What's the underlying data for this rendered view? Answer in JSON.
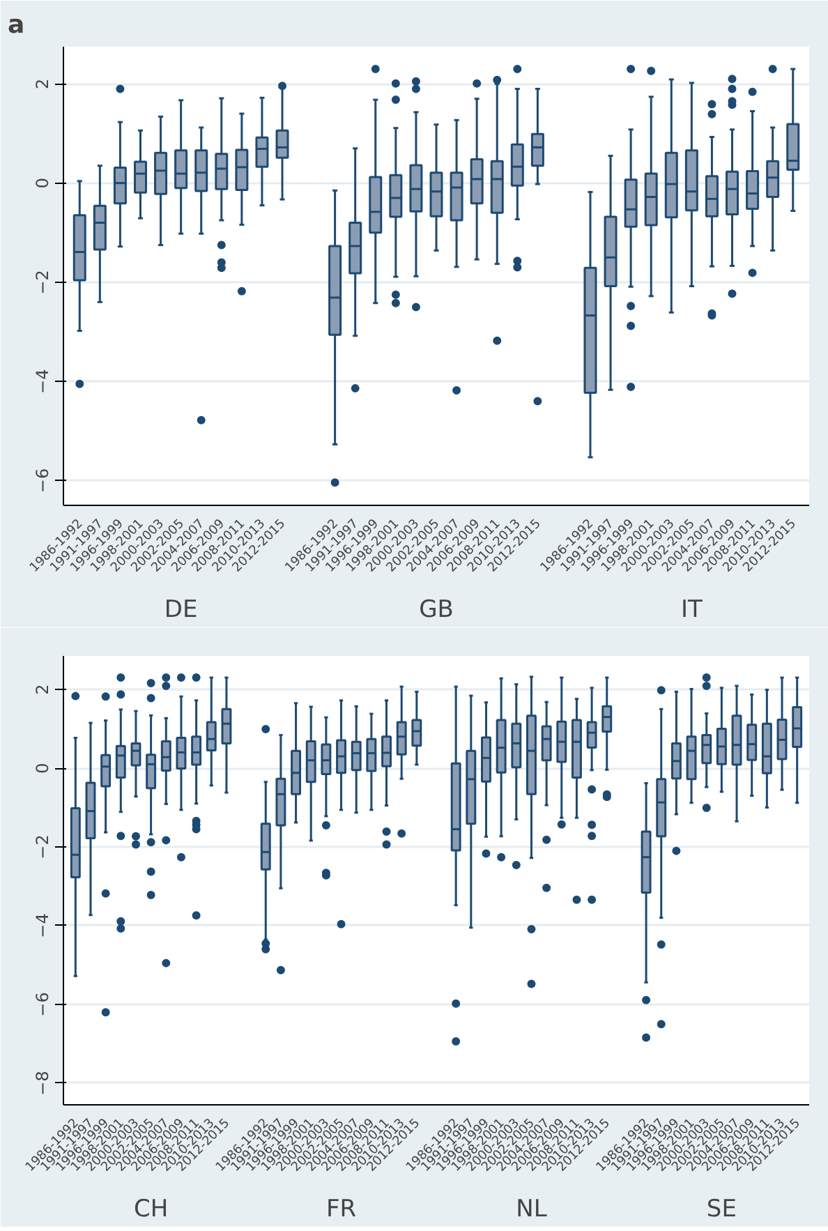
{
  "chart_data": [
    {
      "type": "box",
      "title": "a",
      "color": "#8c9db3",
      "categories": [
        "1986-1992",
        "1991-1997",
        "1996-1999",
        "1998-2001",
        "2000-2003",
        "2002-2005",
        "2004-2007",
        "2006-2009",
        "2008-2011",
        "2010-2013",
        "2012-2015",
        "1986-1992",
        "1991-1997",
        "1996-1999",
        "1998-2001",
        "2000-2003",
        "2002-2005",
        "2004-2007",
        "2006-2009",
        "2008-2011",
        "2010-2013",
        "2012-2015",
        "1986-1992",
        "1991-1997",
        "1996-1999",
        "1998-2001",
        "2000-2003",
        "2002-2005",
        "2004-2007",
        "2006-2009",
        "2008-2011",
        "2010-2013",
        "2012-2015"
      ],
      "annotations": [
        "DE",
        "GB",
        "IT"
      ],
      "ylim": [
        -6.5,
        2.75
      ],
      "yticks": [
        -6,
        -4,
        -2,
        0,
        2
      ],
      "grid": "y",
      "marker": "circle",
      "boxes": [
        {
          "low": -2.98,
          "q1": -1.96,
          "median": -1.39,
          "q3": -0.65,
          "high": 0.04,
          "outliers": [
            -4.05
          ]
        },
        {
          "low": -2.4,
          "q1": -1.34,
          "median": -0.8,
          "q3": -0.46,
          "high": 0.35
        },
        {
          "low": -1.28,
          "q1": -0.41,
          "median": 0.0,
          "q3": 0.31,
          "high": 1.23,
          "outliers": [
            1.9
          ]
        },
        {
          "low": -0.71,
          "q1": -0.19,
          "median": 0.19,
          "q3": 0.43,
          "high": 1.06
        },
        {
          "low": -1.25,
          "q1": -0.22,
          "median": 0.25,
          "q3": 0.61,
          "high": 1.34
        },
        {
          "low": -1.02,
          "q1": -0.1,
          "median": 0.19,
          "q3": 0.66,
          "high": 1.67
        },
        {
          "low": -1.02,
          "q1": -0.16,
          "median": 0.21,
          "q3": 0.66,
          "high": 1.12,
          "outliers": [
            -4.78
          ]
        },
        {
          "low": -0.75,
          "q1": -0.12,
          "median": 0.29,
          "q3": 0.59,
          "high": 1.71,
          "outliers": [
            -1.25,
            -1.6,
            -1.71
          ]
        },
        {
          "low": -0.84,
          "q1": -0.14,
          "median": 0.32,
          "q3": 0.67,
          "high": 1.4,
          "outliers": [
            -2.18
          ]
        },
        {
          "low": -0.45,
          "q1": 0.33,
          "median": 0.69,
          "q3": 0.92,
          "high": 1.72
        },
        {
          "low": -0.33,
          "q1": 0.51,
          "median": 0.72,
          "q3": 1.06,
          "high": 1.93,
          "outliers": [
            1.96
          ]
        },
        {
          "low": -5.27,
          "q1": -3.06,
          "median": -2.31,
          "q3": -1.27,
          "high": -0.15,
          "outliers": [
            -6.04
          ]
        },
        {
          "low": -3.08,
          "q1": -1.82,
          "median": -1.27,
          "q3": -0.8,
          "high": 0.7,
          "outliers": [
            -4.14
          ]
        },
        {
          "low": -2.42,
          "q1": -1.0,
          "median": -0.58,
          "q3": 0.12,
          "high": 1.68,
          "outliers": [
            2.3
          ]
        },
        {
          "low": -1.89,
          "q1": -0.68,
          "median": -0.3,
          "q3": 0.16,
          "high": 1.11,
          "outliers": [
            2.01,
            1.68,
            -2.25,
            -2.42
          ]
        },
        {
          "low": -1.88,
          "q1": -0.57,
          "median": -0.12,
          "q3": 0.36,
          "high": 1.43,
          "outliers": [
            2.05,
            1.9,
            -2.5
          ]
        },
        {
          "low": -1.36,
          "q1": -0.67,
          "median": -0.17,
          "q3": 0.21,
          "high": 1.18
        },
        {
          "low": -1.69,
          "q1": -0.75,
          "median": -0.09,
          "q3": 0.21,
          "high": 1.27,
          "outliers": [
            -4.18
          ]
        },
        {
          "low": -1.54,
          "q1": -0.41,
          "median": 0.08,
          "q3": 0.48,
          "high": 1.7,
          "outliers": [
            2.01
          ]
        },
        {
          "low": -1.63,
          "q1": -0.6,
          "median": 0.08,
          "q3": 0.44,
          "high": 2.0,
          "outliers": [
            2.08,
            -3.18
          ]
        },
        {
          "low": -0.73,
          "q1": -0.05,
          "median": 0.33,
          "q3": 0.78,
          "high": 1.9,
          "outliers": [
            2.3,
            -1.57,
            -1.7
          ]
        },
        {
          "low": -0.02,
          "q1": 0.35,
          "median": 0.72,
          "q3": 0.99,
          "high": 1.9,
          "outliers": [
            -4.4
          ]
        },
        {
          "low": -5.53,
          "q1": -4.23,
          "median": -2.67,
          "q3": -1.71,
          "high": -0.18
        },
        {
          "low": -4.17,
          "q1": -2.08,
          "median": -1.5,
          "q3": -0.68,
          "high": 0.55
        },
        {
          "low": -2.09,
          "q1": -0.88,
          "median": -0.53,
          "q3": 0.07,
          "high": 1.08,
          "outliers": [
            2.3,
            -2.48,
            -2.88,
            -4.11
          ]
        },
        {
          "low": -2.28,
          "q1": -0.85,
          "median": -0.28,
          "q3": 0.19,
          "high": 1.74,
          "outliers": [
            2.26
          ]
        },
        {
          "low": -2.61,
          "q1": -0.69,
          "median": -0.02,
          "q3": 0.61,
          "high": 2.09
        },
        {
          "low": -2.08,
          "q1": -0.55,
          "median": -0.17,
          "q3": 0.66,
          "high": 2.02
        },
        {
          "low": -1.68,
          "q1": -0.67,
          "median": -0.32,
          "q3": 0.14,
          "high": 0.93,
          "outliers": [
            1.59,
            1.39,
            -2.63,
            -2.67
          ]
        },
        {
          "low": -1.67,
          "q1": -0.63,
          "median": -0.12,
          "q3": 0.23,
          "high": 1.08,
          "outliers": [
            2.1,
            1.9,
            1.65,
            1.58,
            -2.23
          ]
        },
        {
          "low": -1.27,
          "q1": -0.52,
          "median": -0.21,
          "q3": 0.24,
          "high": 1.45,
          "outliers": [
            1.84,
            -1.81
          ]
        },
        {
          "low": -1.36,
          "q1": -0.28,
          "median": 0.11,
          "q3": 0.44,
          "high": 1.12,
          "outliers": [
            2.3
          ]
        },
        {
          "low": -0.56,
          "q1": 0.27,
          "median": 0.45,
          "q3": 1.19,
          "high": 2.3
        }
      ]
    },
    {
      "type": "box",
      "color": "#8c9db3",
      "categories": [
        "1986-1992",
        "1991-1997",
        "1996-1999",
        "1998-2001",
        "2000-2003",
        "2002-2005",
        "2004-2007",
        "2006-2009",
        "2008-2011",
        "2010-2013",
        "2012-2015",
        "1986-1992",
        "1991-1997",
        "1996-1999",
        "1998-2001",
        "2000-2003",
        "2002-2005",
        "2004-2007",
        "2006-2009",
        "2008-2011",
        "2010-2013",
        "2012-2015",
        "1986-1992",
        "1991-1997",
        "1996-1999",
        "1998-2001",
        "2000-2003",
        "2002-2005",
        "2004-2007",
        "2006-2009",
        "2008-2011",
        "2010-2013",
        "2012-2015",
        "1986-1992",
        "1991-1997",
        "1996-1999",
        "1998-2001",
        "2000-2003",
        "2002-2005",
        "2004-2007",
        "2006-2009",
        "2008-2011",
        "2010-2013",
        "2012-2015"
      ],
      "annotations": [
        "CH",
        "FR",
        "NL",
        "SE"
      ],
      "ylim": [
        -8.55,
        2.85
      ],
      "yticks": [
        -8,
        -6,
        -4,
        -2,
        0,
        2
      ],
      "grid": "y",
      "marker": "circle",
      "boxes": [
        {
          "low": -5.28,
          "q1": -2.77,
          "median": -2.2,
          "q3": -1.02,
          "high": 0.77,
          "outliers": [
            1.83
          ]
        },
        {
          "low": -3.73,
          "q1": -1.78,
          "median": -1.09,
          "q3": -0.37,
          "high": 1.15
        },
        {
          "low": -1.63,
          "q1": -0.46,
          "median": 0.04,
          "q3": 0.33,
          "high": 1.21,
          "outliers": [
            1.82,
            -3.18,
            -6.2
          ]
        },
        {
          "low": -1.11,
          "q1": -0.24,
          "median": 0.32,
          "q3": 0.56,
          "high": 1.49,
          "outliers": [
            2.3,
            1.87,
            -1.72,
            -3.89,
            -4.07
          ]
        },
        {
          "low": -0.72,
          "q1": 0.07,
          "median": 0.44,
          "q3": 0.63,
          "high": 1.45,
          "outliers": [
            -1.73,
            -1.94
          ]
        },
        {
          "low": -1.68,
          "q1": -0.51,
          "median": 0.1,
          "q3": 0.34,
          "high": 1.34,
          "outliers": [
            2.16,
            1.78,
            -1.88,
            -2.63,
            -3.22
          ]
        },
        {
          "low": -0.91,
          "q1": -0.06,
          "median": 0.28,
          "q3": 0.68,
          "high": 1.27,
          "outliers": [
            2.3,
            2.09,
            -1.83,
            -4.95
          ]
        },
        {
          "low": -1.06,
          "q1": -0.01,
          "median": 0.4,
          "q3": 0.77,
          "high": 1.82,
          "outliers": [
            2.3,
            -2.26
          ]
        },
        {
          "low": -0.9,
          "q1": 0.09,
          "median": 0.4,
          "q3": 0.8,
          "high": 1.72,
          "outliers": [
            2.3,
            -1.34,
            -1.44,
            -1.55,
            -3.74
          ]
        },
        {
          "low": -0.44,
          "q1": 0.45,
          "median": 0.74,
          "q3": 1.17,
          "high": 2.3
        },
        {
          "low": -0.62,
          "q1": 0.63,
          "median": 1.13,
          "q3": 1.5,
          "high": 2.3
        },
        {
          "low": -4.35,
          "q1": -2.57,
          "median": -2.13,
          "q3": -1.41,
          "high": -0.35,
          "outliers": [
            0.99,
            -4.45,
            -4.6
          ]
        },
        {
          "low": -3.05,
          "q1": -1.45,
          "median": -0.66,
          "q3": -0.27,
          "high": 0.84,
          "outliers": [
            -5.13
          ]
        },
        {
          "low": -1.38,
          "q1": -0.66,
          "median": -0.12,
          "q3": 0.44,
          "high": 1.65
        },
        {
          "low": -1.84,
          "q1": -0.35,
          "median": 0.2,
          "q3": 0.68,
          "high": 1.56
        },
        {
          "low": -1.22,
          "q1": -0.15,
          "median": 0.2,
          "q3": 0.6,
          "high": 1.29,
          "outliers": [
            -1.45,
            -2.66,
            -2.72
          ]
        },
        {
          "low": -1.06,
          "q1": -0.12,
          "median": 0.3,
          "q3": 0.71,
          "high": 1.72,
          "outliers": [
            -3.96
          ]
        },
        {
          "low": -1.13,
          "q1": -0.05,
          "median": 0.38,
          "q3": 0.67,
          "high": 1.57
        },
        {
          "low": -1.06,
          "q1": -0.07,
          "median": 0.38,
          "q3": 0.74,
          "high": 1.38
        },
        {
          "low": -0.95,
          "q1": 0.05,
          "median": 0.39,
          "q3": 0.8,
          "high": 1.72,
          "outliers": [
            -1.61,
            -1.94
          ]
        },
        {
          "low": -0.27,
          "q1": 0.35,
          "median": 0.8,
          "q3": 1.17,
          "high": 2.07,
          "outliers": [
            -1.66
          ]
        },
        {
          "low": 0.09,
          "q1": 0.57,
          "median": 0.94,
          "q3": 1.22,
          "high": 1.94
        },
        {
          "low": -3.48,
          "q1": -2.09,
          "median": -1.55,
          "q3": 0.12,
          "high": 2.07,
          "outliers": [
            -5.98,
            -6.94
          ]
        },
        {
          "low": -4.05,
          "q1": -1.41,
          "median": -0.28,
          "q3": 0.44,
          "high": 1.84
        },
        {
          "low": -1.74,
          "q1": -0.34,
          "median": 0.26,
          "q3": 0.78,
          "high": 1.67,
          "outliers": [
            -2.17
          ]
        },
        {
          "low": -1.73,
          "q1": -0.11,
          "median": 0.52,
          "q3": 1.22,
          "high": 2.28,
          "outliers": [
            -2.26
          ]
        },
        {
          "low": -1.3,
          "q1": 0.02,
          "median": 0.63,
          "q3": 1.13,
          "high": 2.13,
          "outliers": [
            -2.46
          ]
        },
        {
          "low": -2.28,
          "q1": -0.66,
          "median": 0.44,
          "q3": 1.33,
          "high": 2.32,
          "outliers": [
            -4.09,
            -5.48
          ]
        },
        {
          "low": -0.94,
          "q1": 0.2,
          "median": 0.74,
          "q3": 1.06,
          "high": 1.68,
          "outliers": [
            -1.82,
            -3.04
          ]
        },
        {
          "low": -1.26,
          "q1": 0.16,
          "median": 0.67,
          "q3": 1.18,
          "high": 2.3,
          "outliers": [
            -1.43
          ]
        },
        {
          "low": -1.26,
          "q1": -0.24,
          "median": 0.67,
          "q3": 1.22,
          "high": 1.76,
          "outliers": [
            -3.34
          ]
        },
        {
          "low": -0.05,
          "q1": 0.52,
          "median": 0.9,
          "q3": 1.17,
          "high": 2.04,
          "outliers": [
            -0.54,
            -1.44,
            -1.72,
            -3.34
          ]
        },
        {
          "low": -0.04,
          "q1": 0.93,
          "median": 1.3,
          "q3": 1.57,
          "high": 2.3,
          "outliers": [
            -0.67,
            -0.73
          ]
        },
        {
          "low": -5.44,
          "q1": -3.16,
          "median": -2.26,
          "q3": -1.61,
          "high": -0.38,
          "outliers": [
            -5.89,
            -6.84
          ]
        },
        {
          "low": -3.8,
          "q1": -1.73,
          "median": -0.87,
          "q3": -0.28,
          "high": 1.5,
          "outliers": [
            1.98,
            -4.48,
            -6.5
          ]
        },
        {
          "low": -1.17,
          "q1": -0.26,
          "median": 0.18,
          "q3": 0.63,
          "high": 1.94,
          "outliers": [
            -2.1
          ]
        },
        {
          "low": -0.88,
          "q1": -0.28,
          "median": 0.44,
          "q3": 0.8,
          "high": 2.01
        },
        {
          "low": -0.48,
          "q1": 0.13,
          "median": 0.59,
          "q3": 0.84,
          "high": 1.39,
          "outliers": [
            2.3,
            2.09,
            -1.01
          ]
        },
        {
          "low": -0.6,
          "q1": 0.1,
          "median": 0.55,
          "q3": 1.0,
          "high": 2.04
        },
        {
          "low": -1.35,
          "q1": 0.09,
          "median": 0.59,
          "q3": 1.33,
          "high": 2.09
        },
        {
          "low": -0.7,
          "q1": 0.21,
          "median": 0.61,
          "q3": 1.1,
          "high": 1.87
        },
        {
          "low": -1.0,
          "q1": -0.13,
          "median": 0.3,
          "q3": 1.13,
          "high": 1.99
        },
        {
          "low": -0.55,
          "q1": 0.23,
          "median": 0.72,
          "q3": 1.23,
          "high": 2.3
        },
        {
          "low": -0.88,
          "q1": 0.54,
          "median": 1.01,
          "q3": 1.55,
          "high": 2.3
        }
      ]
    }
  ]
}
